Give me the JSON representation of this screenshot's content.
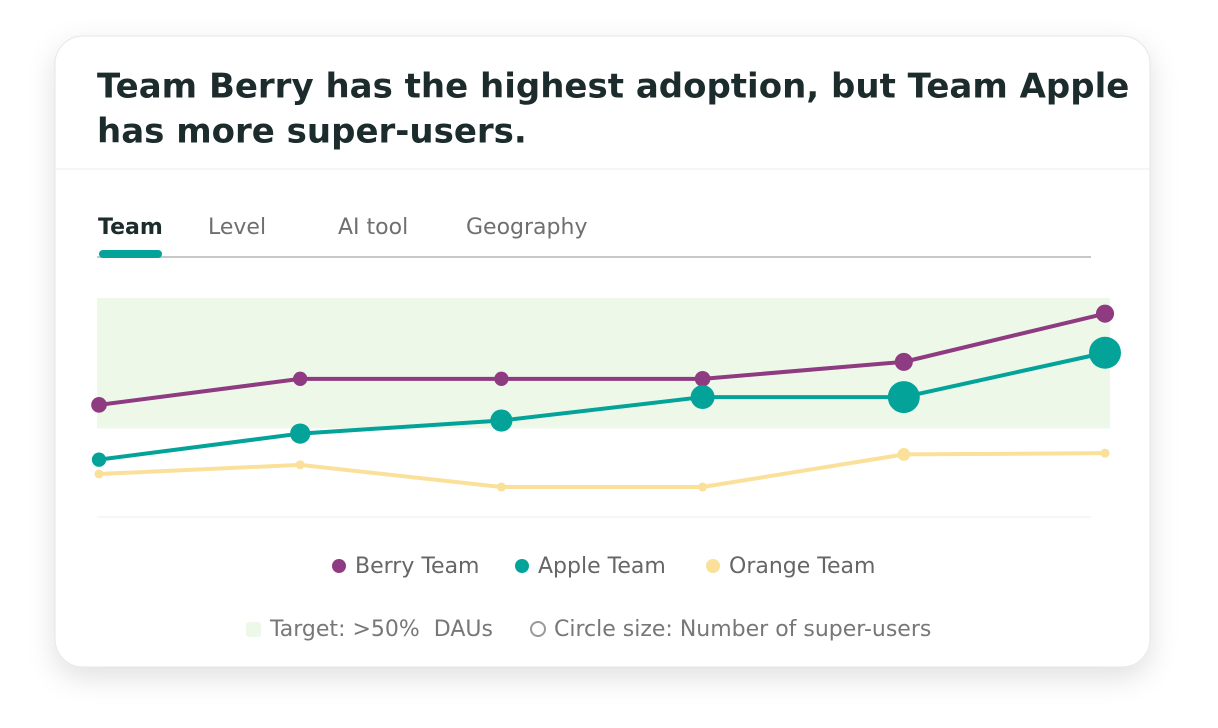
{
  "tabs": [
    "Team",
    "Level",
    "AI tool",
    "Geography"
  ],
  "chart_data": {
    "type": "line",
    "title": [
      "Team Berry has the highest adoption, but Team Apple",
      "has more super-users."
    ],
    "categories": [
      null,
      null,
      null,
      null,
      null,
      null
    ],
    "ylim": [
      16,
      100
    ],
    "series": [
      {
        "name": "Berry Team",
        "color": "#8e3b82",
        "values": [
          59,
          69,
          69,
          69,
          75.5,
          94
        ],
        "sizes": [
          6,
          5,
          5,
          6,
          8,
          8
        ]
      },
      {
        "name": "Apple Team",
        "color": "#03a39a",
        "values": [
          38,
          48,
          53,
          62,
          62,
          79
        ],
        "sizes": [
          5,
          10,
          12,
          14,
          25,
          25
        ]
      },
      {
        "name": "Orange Team",
        "color": "#fbe09a",
        "values": [
          32.5,
          36,
          27.5,
          27.5,
          40,
          40.5
        ],
        "sizes": [
          2,
          2,
          2,
          2,
          4,
          2
        ]
      }
    ],
    "target": {
      "label": "Target: >50%  DAUs",
      "range": [
        50,
        100
      ],
      "color": "#eef8e8"
    },
    "size_legend": "Circle size: Number of super-users"
  }
}
